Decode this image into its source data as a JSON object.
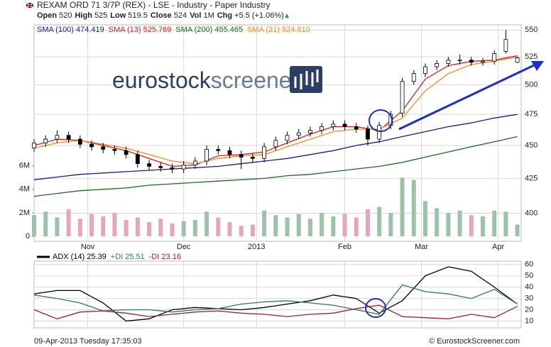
{
  "header": {
    "title": "REXAM ORD 71 3/7P (REX) - LSE - Industry - Paper Industry",
    "stats": [
      {
        "label": "Open",
        "value": "520"
      },
      {
        "label": "High",
        "value": "525"
      },
      {
        "label": "Low",
        "value": "519.5"
      },
      {
        "label": "Close",
        "value": "524"
      },
      {
        "label": "Vol",
        "value": "1M"
      },
      {
        "label": "Chg",
        "value": "+5.5 (+1.06%)"
      }
    ]
  },
  "logo": [
    "eurostock",
    "screener"
  ],
  "chart_data": [
    {
      "type": "candlestick",
      "log": true,
      "up_color": "#ffffff",
      "down_color": "#000000",
      "x": [
        0,
        3,
        6,
        9,
        12,
        15,
        18,
        21,
        24,
        27,
        30,
        33,
        36,
        39,
        42,
        45,
        48,
        51,
        54,
        57,
        60,
        63,
        66,
        69,
        72,
        75,
        78,
        81,
        84,
        87,
        90,
        93,
        96,
        99,
        102,
        105,
        108,
        111,
        114,
        117,
        120,
        123,
        126
      ],
      "open": [
        448,
        452,
        455,
        458,
        455,
        451,
        449,
        447,
        446,
        443,
        436,
        434,
        433,
        432,
        435,
        438,
        447,
        446,
        443,
        441,
        440,
        449,
        454,
        458,
        460,
        462,
        465,
        467,
        465,
        463,
        455,
        466,
        476,
        503,
        510,
        516,
        519,
        522,
        522,
        520,
        521,
        530,
        520
      ],
      "high": [
        455,
        458,
        462,
        461,
        458,
        454,
        452,
        450,
        449,
        446,
        439,
        437,
        436,
        438,
        441,
        450,
        450,
        449,
        446,
        444,
        452,
        457,
        461,
        463,
        465,
        468,
        470,
        470,
        468,
        466,
        469,
        478,
        506,
        513,
        519,
        522,
        525,
        527,
        525,
        524,
        531,
        550,
        525
      ],
      "low": [
        445,
        449,
        452,
        452,
        448,
        446,
        444,
        443,
        440,
        433,
        431,
        430,
        429,
        429,
        432,
        435,
        443,
        440,
        432,
        437,
        437,
        446,
        451,
        455,
        457,
        459,
        462,
        462,
        460,
        450,
        452,
        463,
        473,
        500,
        507,
        513,
        516,
        518,
        517,
        517,
        518,
        528,
        519.5
      ],
      "close": [
        452,
        455,
        458,
        455,
        451,
        449,
        447,
        446,
        443,
        436,
        434,
        433,
        432,
        435,
        438,
        447,
        446,
        443,
        441,
        440,
        449,
        454,
        458,
        460,
        462,
        465,
        467,
        465,
        463,
        455,
        466,
        475,
        503,
        510,
        516,
        519,
        522,
        522,
        520,
        521,
        528,
        541,
        524
      ],
      "volume": {
        "axis": "y2",
        "up_color": "#9cc3a6",
        "down_color": "#e3a6ba",
        "values": [
          1800000,
          2100000,
          1600000,
          2300000,
          1500000,
          1900000,
          1700000,
          2000000,
          1400000,
          1600000,
          1200000,
          1500000,
          1100000,
          1300000,
          1400000,
          2100000,
          1600000,
          1200000,
          900000,
          1000000,
          2200000,
          1800000,
          1600000,
          1900000,
          1500000,
          2000000,
          1700000,
          1900000,
          1600000,
          2300000,
          2500000,
          2000000,
          5000000,
          4800000,
          3000000,
          2400000,
          2000000,
          2200000,
          1800000,
          1700000,
          2200000,
          2100000,
          1000000
        ]
      },
      "series": [
        {
          "name": "SMA (100)",
          "last": "474.419",
          "color": "#1c1c8c",
          "x": [
            0,
            6,
            12,
            18,
            24,
            30,
            36,
            42,
            48,
            54,
            60,
            66,
            72,
            78,
            84,
            90,
            96,
            102,
            108,
            114,
            120,
            126
          ],
          "values": [
            424,
            426,
            428,
            429,
            430,
            431,
            432,
            433,
            434,
            436,
            438,
            440,
            443,
            446,
            450,
            453,
            457,
            461,
            465,
            468,
            472,
            475
          ]
        },
        {
          "name": "SMA (13)",
          "last": "525.769",
          "color": "#d42020",
          "x": [
            0,
            6,
            12,
            18,
            24,
            30,
            36,
            42,
            48,
            54,
            60,
            66,
            72,
            78,
            84,
            90,
            96,
            102,
            108,
            114,
            120,
            126
          ],
          "values": [
            450,
            455,
            454,
            450,
            446,
            440,
            434,
            435,
            442,
            443,
            445,
            452,
            459,
            465,
            465,
            462,
            478,
            505,
            517,
            521,
            522,
            526
          ]
        },
        {
          "name": "SMA (200)",
          "last": "455.465",
          "color": "#1d6b1d",
          "x": [
            0,
            6,
            12,
            18,
            24,
            30,
            36,
            42,
            48,
            54,
            60,
            66,
            72,
            78,
            84,
            90,
            96,
            102,
            108,
            114,
            120,
            126
          ],
          "values": [
            412,
            414,
            416,
            417,
            418,
            420,
            421,
            422,
            423,
            424,
            425,
            427,
            428,
            430,
            432,
            434,
            437,
            441,
            445,
            449,
            453,
            457
          ]
        },
        {
          "name": "SMA (21)",
          "last": "524.810",
          "color": "#f08a24",
          "x": [
            0,
            6,
            12,
            18,
            24,
            30,
            36,
            42,
            48,
            54,
            60,
            66,
            72,
            78,
            84,
            90,
            96,
            102,
            108,
            114,
            120,
            126
          ],
          "values": [
            448,
            452,
            454,
            451,
            448,
            443,
            438,
            436,
            440,
            442,
            443,
            449,
            455,
            461,
            463,
            463,
            472,
            495,
            510,
            518,
            521,
            525
          ]
        }
      ],
      "xlim": [
        0,
        127
      ],
      "xticks": [
        {
          "value": 14,
          "label": "Nov"
        },
        {
          "value": 39,
          "label": "Dec"
        },
        {
          "value": 58,
          "label": "2013"
        },
        {
          "value": 81,
          "label": "Feb"
        },
        {
          "value": 101,
          "label": "Mar"
        },
        {
          "value": 121,
          "label": "Apr"
        }
      ],
      "ylim": [
        381,
        555
      ],
      "yticks": [
        400,
        425,
        450,
        475,
        500,
        525,
        550
      ],
      "y2lim": [
        0,
        18000000
      ],
      "y2ticks": [
        0,
        {
          "value": 2000000,
          "label": "2M"
        },
        {
          "value": 4000000,
          "label": "4M"
        },
        {
          "value": 6000000,
          "label": "6M"
        }
      ]
    },
    {
      "type": "line",
      "series": [
        {
          "name": "ADX (14)",
          "last": "25.39",
          "color": "#000000",
          "x": [
            0,
            6,
            12,
            18,
            24,
            30,
            36,
            42,
            48,
            54,
            60,
            66,
            72,
            78,
            84,
            90,
            96,
            102,
            108,
            114,
            120,
            126
          ],
          "values": [
            34,
            37,
            37,
            26,
            10,
            12,
            20,
            22,
            21,
            20,
            22,
            25,
            28,
            33,
            30,
            17,
            28,
            50,
            58,
            54,
            40,
            25
          ]
        },
        {
          "name": "+DI",
          "last": "25.51",
          "color": "#2e7d4a",
          "x": [
            0,
            6,
            12,
            18,
            24,
            30,
            36,
            42,
            48,
            54,
            60,
            66,
            72,
            78,
            84,
            90,
            96,
            102,
            108,
            114,
            120,
            126
          ],
          "values": [
            33,
            30,
            26,
            19,
            20,
            20,
            18,
            20,
            21,
            25,
            27,
            28,
            26,
            24,
            20,
            16,
            42,
            36,
            34,
            30,
            38,
            25
          ]
        },
        {
          "name": "-DI",
          "last": "23.16",
          "color": "#9c1a4c",
          "x": [
            0,
            6,
            12,
            18,
            24,
            30,
            36,
            42,
            48,
            54,
            60,
            66,
            72,
            78,
            84,
            90,
            96,
            102,
            108,
            114,
            120,
            126
          ],
          "values": [
            20,
            12,
            18,
            19,
            17,
            14,
            16,
            18,
            19,
            17,
            16,
            14,
            16,
            17,
            21,
            24,
            14,
            13,
            12,
            16,
            13,
            23
          ]
        }
      ],
      "xlim": [
        0,
        127
      ],
      "ylim": [
        4,
        63
      ],
      "yticks": [
        10,
        20,
        30,
        40,
        50,
        60
      ]
    }
  ],
  "footer": {
    "left": "09-Apr-2013 Tuesday 17:35:03",
    "right": "© EurostockScreener.com"
  }
}
